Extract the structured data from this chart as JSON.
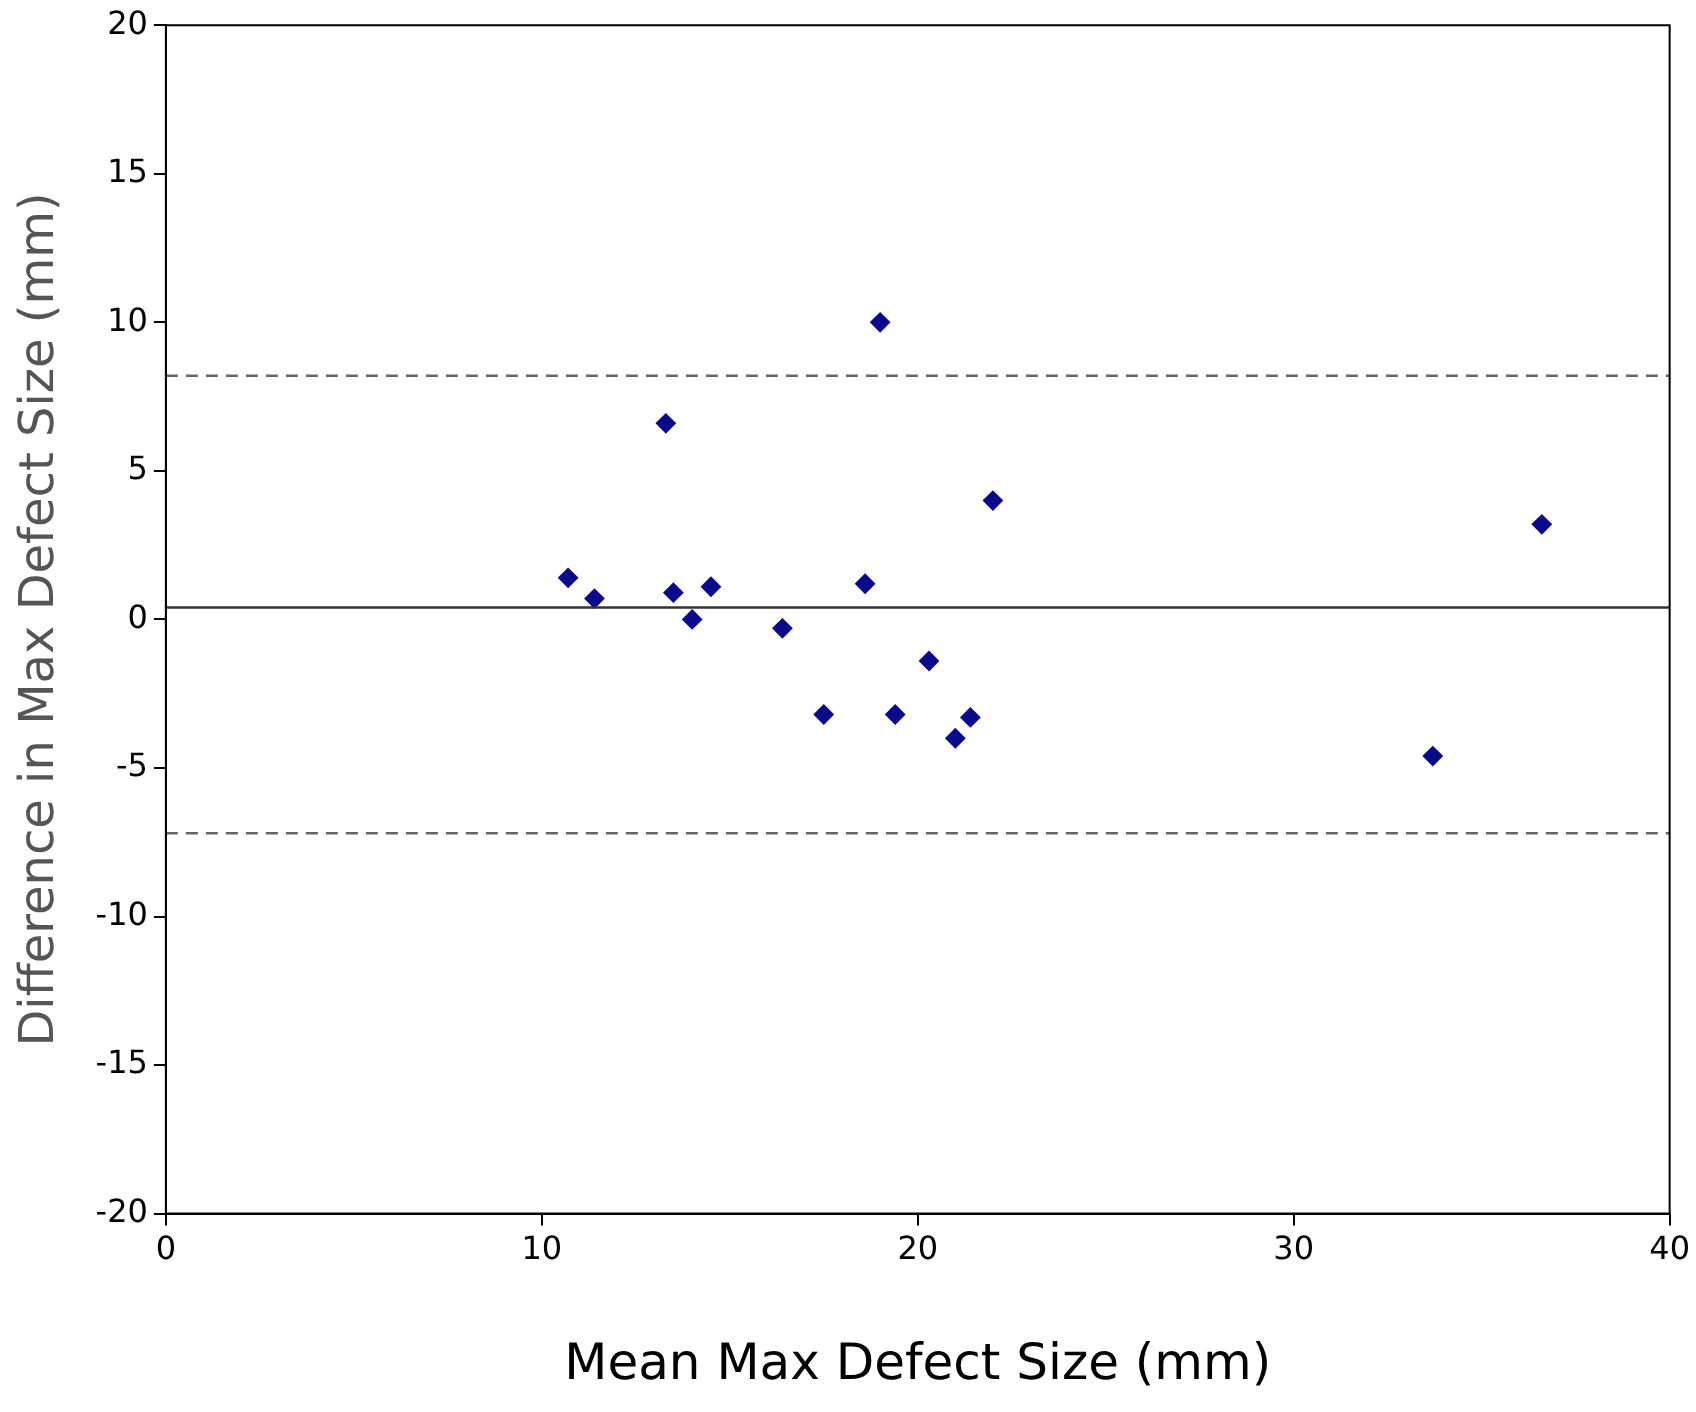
{
  "chart_data": {
    "type": "scatter",
    "xlabel": "Mean Max Defect Size (mm)",
    "ylabel": "Difference in Max Defect Size (mm)",
    "series": [
      {
        "color": "#0a0a8c",
        "x": [
          10.7,
          11.4,
          13.3,
          13.5,
          14.0,
          14.5,
          16.4,
          17.5,
          18.6,
          19.0,
          19.4,
          20.3,
          21.0,
          21.4,
          22.0,
          36.6,
          33.7
        ],
        "values": [
          1.4,
          0.7,
          6.6,
          0.9,
          0.0,
          1.1,
          -0.3,
          -3.2,
          1.2,
          10.0,
          -3.2,
          -1.4,
          -4.0,
          -3.3,
          4.0,
          3.2,
          -4.6
        ]
      }
    ],
    "xlim": [
      0,
      40
    ],
    "xticks": [
      0,
      10,
      20,
      30,
      40
    ],
    "ylim": [
      -20,
      20
    ],
    "yticks": [
      -20,
      -15,
      -10,
      -5,
      0,
      5,
      10,
      15,
      20
    ],
    "ref_lines": [
      {
        "axis": "y",
        "value": 0.4,
        "color": "#333333",
        "line_style": "solid"
      },
      {
        "axis": "y",
        "value": 8.2,
        "color": "#666666",
        "line_style": "dashed"
      },
      {
        "axis": "y",
        "value": -7.2,
        "color": "#666666",
        "line_style": "dashed"
      }
    ],
    "marker": "diamond",
    "grid": false,
    "legend": false
  }
}
